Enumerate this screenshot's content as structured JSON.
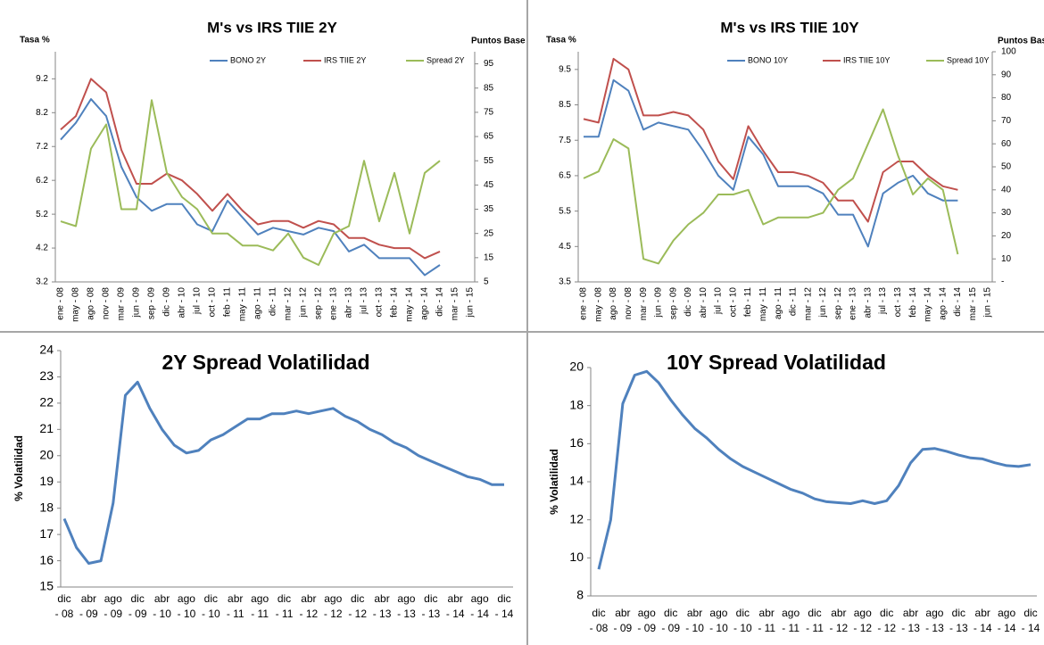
{
  "chart_data": [
    {
      "type": "line",
      "title": "M's vs IRS TIIE 2Y",
      "y_label": "Tasa %",
      "y2_label": "Puntos Base",
      "categories": [
        "ene - 08",
        "may - 08",
        "ago - 08",
        "nov - 08",
        "mar - 09",
        "jun - 09",
        "sep - 09",
        "dic - 09",
        "abr - 10",
        "jul - 10",
        "oct - 10",
        "feb - 11",
        "may - 11",
        "ago - 11",
        "dic - 11",
        "mar - 12",
        "jun - 12",
        "sep - 12",
        "ene - 13",
        "abr - 13",
        "jul - 13",
        "oct - 13",
        "feb - 14",
        "may - 14",
        "ago - 14",
        "dic - 14",
        "mar - 15",
        "jun - 15"
      ],
      "series": [
        {
          "name": "BONO 2Y",
          "color": "#4f81bd",
          "values": [
            7.4,
            7.9,
            8.6,
            8.1,
            6.6,
            5.7,
            5.3,
            5.5,
            5.5,
            4.9,
            4.7,
            5.6,
            5.1,
            4.6,
            4.8,
            4.7,
            4.6,
            4.8,
            4.7,
            4.1,
            4.3,
            3.9,
            3.9,
            3.9,
            3.4,
            3.7,
            null,
            null
          ]
        },
        {
          "name": "IRS TIIE 2Y",
          "color": "#c0504d",
          "values": [
            7.7,
            8.1,
            9.2,
            8.8,
            7.1,
            6.1,
            6.1,
            6.4,
            6.2,
            5.8,
            5.3,
            5.8,
            5.3,
            4.9,
            5.0,
            5.0,
            4.8,
            5.0,
            4.9,
            4.5,
            4.5,
            4.3,
            4.2,
            4.2,
            3.9,
            4.1,
            null,
            null
          ]
        },
        {
          "name": "Spread 2Y",
          "color": "#9bbb59",
          "axis": "y2",
          "values": [
            30,
            28,
            60,
            70,
            35,
            35,
            80,
            50,
            40,
            35,
            25,
            25,
            20,
            20,
            18,
            25,
            15,
            12,
            25,
            28,
            55,
            30,
            50,
            25,
            50,
            55,
            null,
            null
          ]
        }
      ],
      "ylim": [
        3.2,
        10.0
      ],
      "yticks": [
        3.2,
        4.2,
        5.2,
        6.2,
        7.2,
        8.2,
        9.2
      ],
      "y2lim": [
        5,
        100
      ],
      "y2ticks": [
        5,
        15,
        25,
        35,
        45,
        55,
        65,
        75,
        85,
        95
      ]
    },
    {
      "type": "line",
      "title": "M's vs IRS TIIE 10Y",
      "y_label": "Tasa %",
      "y2_label": "Puntos Base",
      "categories": [
        "ene - 08",
        "may - 08",
        "ago - 08",
        "nov - 08",
        "mar - 09",
        "jun - 09",
        "sep - 09",
        "dic - 09",
        "abr - 10",
        "jul - 10",
        "oct - 10",
        "feb - 11",
        "may - 11",
        "ago - 11",
        "dic - 11",
        "mar - 12",
        "jun - 12",
        "sep - 12",
        "ene - 13",
        "abr - 13",
        "jul - 13",
        "oct - 13",
        "feb - 14",
        "may - 14",
        "ago - 14",
        "dic - 14",
        "mar - 15",
        "jun - 15"
      ],
      "series": [
        {
          "name": "BONO 10Y",
          "color": "#4f81bd",
          "values": [
            7.6,
            7.6,
            9.2,
            8.9,
            7.8,
            8.0,
            7.9,
            7.8,
            7.2,
            6.5,
            6.1,
            7.6,
            7.1,
            6.2,
            6.2,
            6.2,
            6.0,
            5.4,
            5.4,
            4.5,
            6.0,
            6.3,
            6.5,
            6.0,
            5.8,
            5.8,
            null,
            null
          ]
        },
        {
          "name": "IRS TIIE 10Y",
          "color": "#c0504d",
          "values": [
            8.1,
            8.0,
            9.8,
            9.5,
            8.2,
            8.2,
            8.3,
            8.2,
            7.8,
            6.9,
            6.4,
            7.9,
            7.2,
            6.6,
            6.6,
            6.5,
            6.3,
            5.8,
            5.8,
            5.2,
            6.6,
            6.9,
            6.9,
            6.5,
            6.2,
            6.1,
            null,
            null
          ]
        },
        {
          "name": "Spread 10Y",
          "color": "#9bbb59",
          "axis": "y2",
          "values": [
            45,
            48,
            62,
            58,
            10,
            8,
            18,
            25,
            30,
            38,
            38,
            40,
            25,
            28,
            28,
            28,
            30,
            40,
            45,
            60,
            75,
            55,
            38,
            45,
            40,
            12,
            null,
            null
          ]
        }
      ],
      "ylim": [
        3.5,
        10.0
      ],
      "yticks": [
        3.5,
        4.5,
        5.5,
        6.5,
        7.5,
        8.5,
        9.5
      ],
      "y2lim": [
        0,
        100
      ],
      "y2ticks": [
        {
          "value": 0,
          "label": "-"
        },
        10,
        20,
        30,
        40,
        50,
        60,
        70,
        80,
        90,
        100
      ]
    },
    {
      "type": "line",
      "title": "2Y Spread Volatilidad",
      "y_label": "% Volatilidad",
      "color": "#4f81bd",
      "categories": [
        "dic - 08",
        null,
        "abr - 09",
        null,
        "ago - 09",
        null,
        "dic - 09",
        null,
        "abr - 10",
        null,
        "ago - 10",
        null,
        "dic - 10",
        null,
        "abr - 11",
        null,
        "ago - 11",
        null,
        "dic - 11",
        null,
        "abr - 12",
        null,
        "ago - 12",
        null,
        "dic - 12",
        null,
        "abr - 13",
        null,
        "ago - 13",
        null,
        "dic - 13",
        null,
        "abr - 14",
        null,
        "ago - 14",
        null,
        "dic - 14"
      ],
      "values": [
        17.6,
        16.5,
        15.9,
        16.0,
        18.2,
        22.3,
        22.8,
        21.8,
        21.0,
        20.4,
        20.1,
        20.2,
        20.6,
        20.8,
        21.1,
        21.4,
        21.4,
        21.6,
        21.6,
        21.7,
        21.6,
        21.7,
        21.8,
        21.5,
        21.3,
        21.0,
        20.8,
        20.5,
        20.3,
        20.0,
        19.8,
        19.6,
        19.4,
        19.2,
        19.1,
        18.9,
        18.9
      ],
      "ylim": [
        15,
        24
      ],
      "yticks": [
        15,
        16,
        17,
        18,
        19,
        20,
        21,
        22,
        23,
        24
      ]
    },
    {
      "type": "line",
      "title": "10Y Spread Volatilidad",
      "y_label": "% Volatilidad",
      "color": "#4f81bd",
      "categories": [
        "dic - 08",
        null,
        "abr - 09",
        null,
        "ago - 09",
        null,
        "dic - 09",
        null,
        "abr - 10",
        null,
        "ago - 10",
        null,
        "dic - 10",
        null,
        "abr - 11",
        null,
        "ago - 11",
        null,
        "dic - 11",
        null,
        "abr - 12",
        null,
        "ago - 12",
        null,
        "dic - 12",
        null,
        "abr - 13",
        null,
        "ago - 13",
        null,
        "dic - 13",
        null,
        "abr - 14",
        null,
        "ago - 14",
        null,
        "dic - 14"
      ],
      "values": [
        9.4,
        12.0,
        18.1,
        19.6,
        19.8,
        19.2,
        18.3,
        17.5,
        16.8,
        16.3,
        15.7,
        15.2,
        14.8,
        14.5,
        14.2,
        13.9,
        13.6,
        13.4,
        13.1,
        12.95,
        12.9,
        12.85,
        13.0,
        12.85,
        13.0,
        13.8,
        15.0,
        15.7,
        15.75,
        15.6,
        15.4,
        15.25,
        15.2,
        15.0,
        14.85,
        14.8,
        14.9
      ],
      "ylim": [
        8,
        20
      ],
      "yticks": [
        8,
        10,
        12,
        14,
        16,
        18,
        20
      ]
    }
  ]
}
